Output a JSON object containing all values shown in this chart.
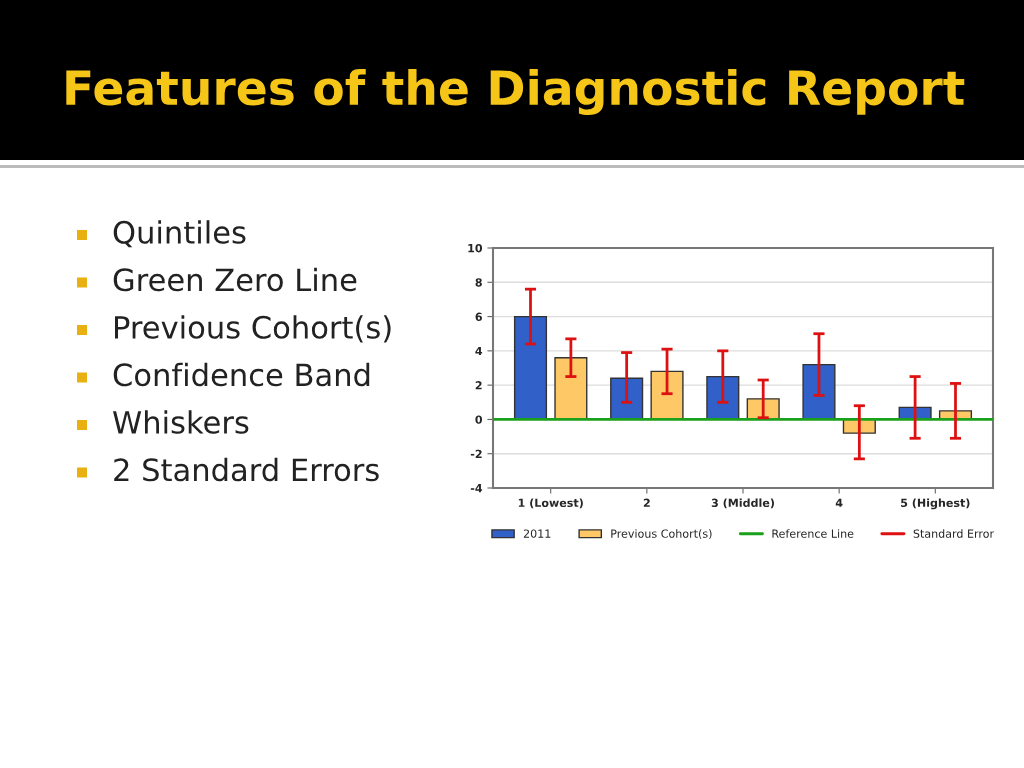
{
  "chart_data": {
    "type": "bar",
    "title": "Features of the Diagnostic Report",
    "categories": [
      "1 (Lowest)",
      "2",
      "3 (Middle)",
      "4",
      "5 (Highest)"
    ],
    "series": [
      {
        "name": "2011",
        "color": "#3060c8",
        "values": [
          6.0,
          2.4,
          2.5,
          3.2,
          0.7
        ],
        "errors": [
          [
            4.4,
            7.6
          ],
          [
            1.0,
            3.9
          ],
          [
            1.0,
            4.0
          ],
          [
            1.4,
            5.0
          ],
          [
            -1.1,
            2.5
          ]
        ]
      },
      {
        "name": "Previous Cohort(s)",
        "color": "#ffc866",
        "values": [
          3.6,
          2.8,
          1.2,
          -0.8,
          0.5
        ],
        "errors": [
          [
            2.5,
            4.7
          ],
          [
            1.5,
            4.1
          ],
          [
            0.1,
            2.3
          ],
          [
            -2.3,
            0.8
          ],
          [
            -1.1,
            2.1
          ]
        ]
      }
    ],
    "ylim": [
      -4,
      10
    ],
    "yticks": [
      -4,
      -2,
      0,
      2,
      4,
      6,
      8,
      10
    ],
    "grid": "y",
    "legend": "bottom",
    "ref_lines": [
      {
        "axis": "y",
        "value": 0,
        "label": "Reference Line",
        "color": "#1aa01a"
      }
    ],
    "annotations": [
      "Quintiles",
      "Green Zero Line",
      "Previous Cohort(s)",
      "Confidence Band",
      "Whiskers",
      "2 Standard Errors",
      "Standard Error"
    ]
  }
}
